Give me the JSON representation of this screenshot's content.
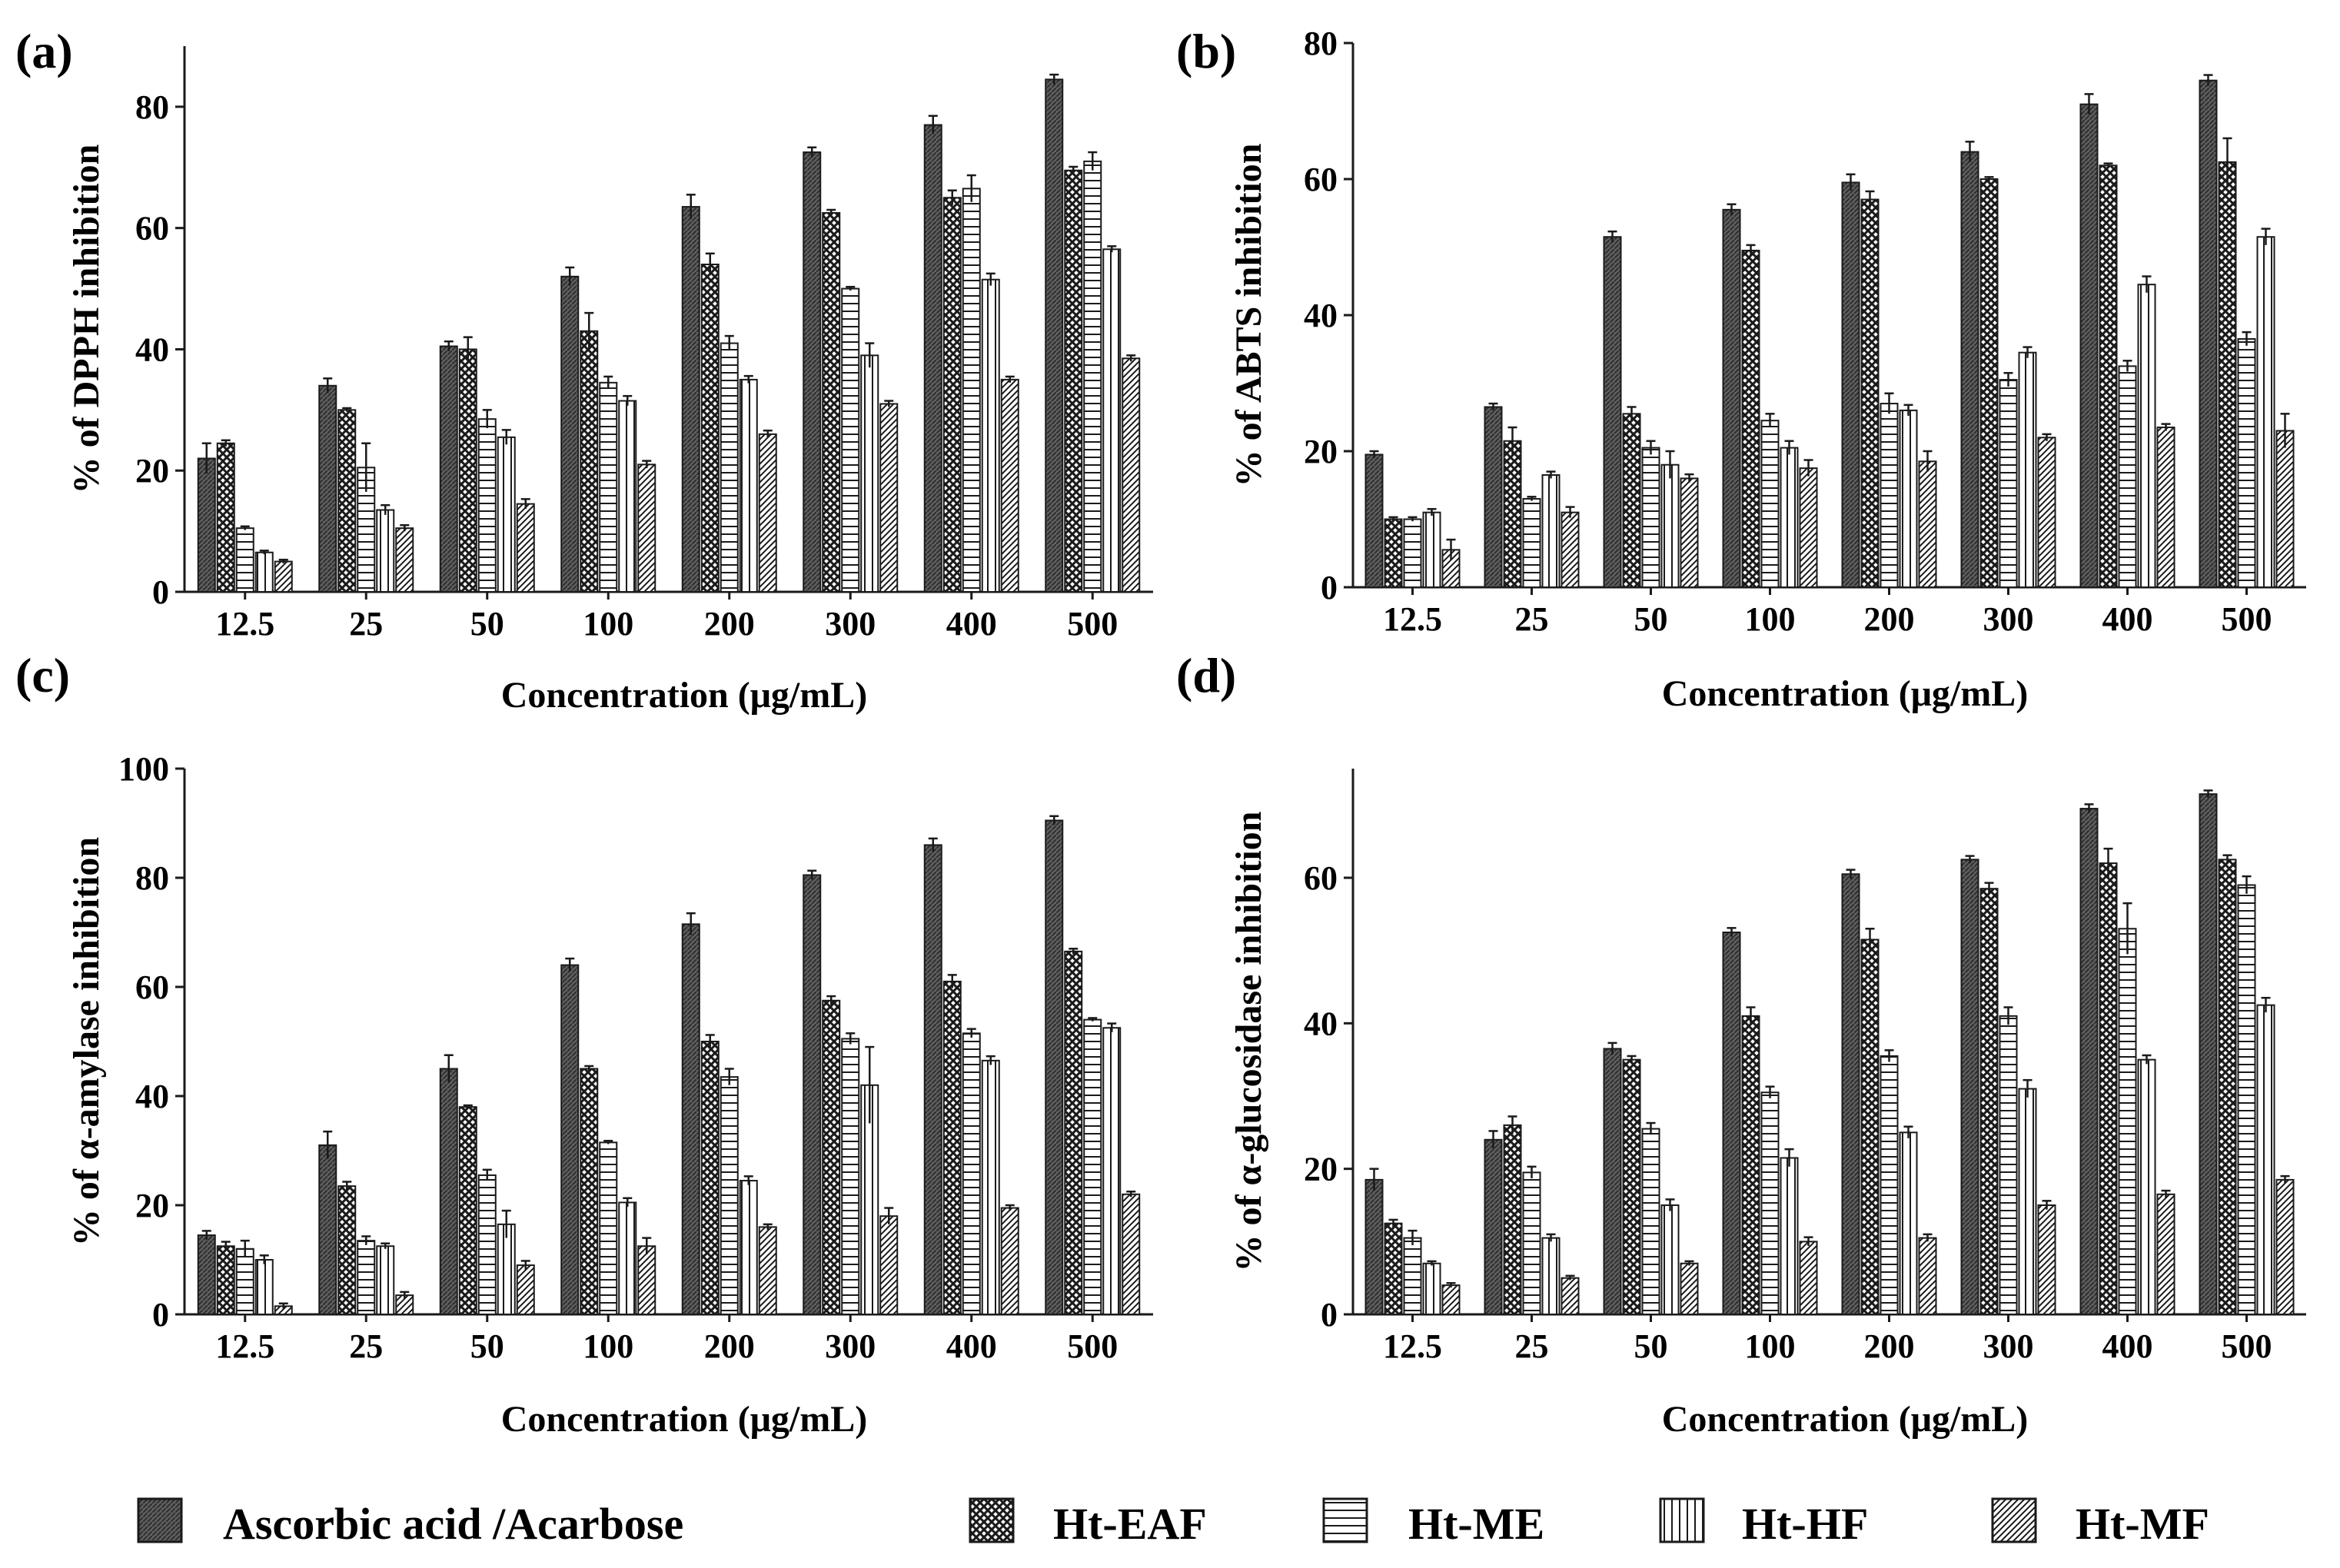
{
  "categories": [
    "12.5",
    "25",
    "50",
    "100",
    "200",
    "300",
    "400",
    "500"
  ],
  "series_names": [
    "Ascorbic acid /Acarbose",
    "Ht-EAF",
    "Ht-ME",
    "Ht-HF",
    "Ht-MF"
  ],
  "legend": {
    "items": [
      {
        "label": "Ascorbic acid /Acarbose",
        "pattern": "dense-dark"
      },
      {
        "label": "Ht-EAF",
        "pattern": "crosshatch"
      },
      {
        "label": "Ht-ME",
        "pattern": "horizontal-lines"
      },
      {
        "label": "Ht-HF",
        "pattern": "vertical-lines"
      },
      {
        "label": "Ht-MF",
        "pattern": "diagonal-lines"
      }
    ]
  },
  "colors": {
    "ink": "#1a1a1a",
    "dark_fill": "#666666",
    "background": "#ffffff"
  },
  "chart_data": [
    {
      "type": "bar",
      "panel": "(a)",
      "title": "",
      "xlabel": "Concentration  (μg/mL)",
      "ylabel": "% of DPPH inhibition",
      "ylim": [
        0,
        90
      ],
      "yticks": [
        0,
        20,
        40,
        60,
        80
      ],
      "categories": [
        "12.5",
        "25",
        "50",
        "100",
        "200",
        "300",
        "400",
        "500"
      ],
      "series": [
        {
          "name": "Ascorbic acid /Acarbose",
          "values": [
            22,
            34,
            40.5,
            52,
            63.5,
            72.5,
            77,
            84.5
          ],
          "errors": [
            2.5,
            1.2,
            0.8,
            1.5,
            2,
            0.8,
            1.5,
            0.8
          ]
        },
        {
          "name": "Ht-EAF",
          "values": [
            24.5,
            30,
            40,
            43,
            54,
            62.5,
            65,
            69.5
          ],
          "errors": [
            0.5,
            0.3,
            2,
            3,
            1.8,
            0.5,
            1.2,
            0.6
          ]
        },
        {
          "name": "Ht-ME",
          "values": [
            10.5,
            20.5,
            28.5,
            34.5,
            41,
            50,
            66.5,
            71
          ],
          "errors": [
            0.3,
            4,
            1.5,
            1,
            1.2,
            0.3,
            2.2,
            1.5
          ]
        },
        {
          "name": "Ht-HF",
          "values": [
            6.5,
            13.5,
            25.5,
            31.5,
            35,
            39,
            51.5,
            56.5
          ],
          "errors": [
            0.3,
            0.8,
            1.2,
            0.8,
            0.6,
            2,
            1,
            0.5
          ]
        },
        {
          "name": "Ht-MF",
          "values": [
            5,
            10.5,
            14.5,
            21,
            26,
            31,
            35,
            38.5
          ],
          "errors": [
            0.3,
            0.5,
            0.8,
            0.6,
            0.6,
            0.5,
            0.5,
            0.5
          ]
        }
      ]
    },
    {
      "type": "bar",
      "panel": "(b)",
      "title": "",
      "xlabel": "Concentration  (μg/mL)",
      "ylabel": "% of ABTS inhibition",
      "ylim": [
        0,
        80
      ],
      "yticks": [
        0,
        20,
        40,
        60,
        80
      ],
      "categories": [
        "12.5",
        "25",
        "50",
        "100",
        "200",
        "300",
        "400",
        "500"
      ],
      "series": [
        {
          "name": "Ascorbic acid /Acarbose",
          "values": [
            19.5,
            26.5,
            51.5,
            55.5,
            59.5,
            64,
            71,
            74.5
          ],
          "errors": [
            0.5,
            0.5,
            0.8,
            0.8,
            1.2,
            1.5,
            1.5,
            0.8
          ]
        },
        {
          "name": "Ht-EAF",
          "values": [
            10,
            21.5,
            25.5,
            49.5,
            57,
            60,
            62,
            62.5
          ],
          "errors": [
            0.3,
            2,
            1,
            0.8,
            1.2,
            0.3,
            0.3,
            3.5
          ]
        },
        {
          "name": "Ht-ME",
          "values": [
            10,
            13,
            20.5,
            24.5,
            27,
            30.5,
            32.5,
            36.5
          ],
          "errors": [
            0.3,
            0.3,
            1,
            1,
            1.5,
            1,
            0.8,
            1
          ]
        },
        {
          "name": "Ht-HF",
          "values": [
            11,
            16.5,
            18,
            20.5,
            26,
            34.5,
            44.5,
            51.5
          ],
          "errors": [
            0.5,
            0.5,
            2,
            1,
            0.8,
            0.8,
            1.2,
            1.2
          ]
        },
        {
          "name": "Ht-MF",
          "values": [
            5.5,
            11,
            16,
            17.5,
            18.5,
            22,
            23.5,
            23
          ],
          "errors": [
            1.5,
            0.8,
            0.6,
            1.2,
            1.5,
            0.5,
            0.5,
            2.5
          ]
        }
      ]
    },
    {
      "type": "bar",
      "panel": "(c)",
      "title": "",
      "xlabel": "Concentration  (μg/mL)",
      "ylabel": "% of α-amylase inhibition",
      "ylim": [
        0,
        100
      ],
      "yticks": [
        0,
        20,
        40,
        60,
        80,
        100
      ],
      "categories": [
        "12.5",
        "25",
        "50",
        "100",
        "200",
        "300",
        "400",
        "500"
      ],
      "series": [
        {
          "name": "Ascorbic acid /Acarbose",
          "values": [
            14.5,
            31,
            45,
            64,
            71.5,
            80.5,
            86,
            90.5
          ],
          "errors": [
            0.8,
            2.5,
            2.5,
            1.2,
            2,
            0.8,
            1.2,
            0.8
          ]
        },
        {
          "name": "Ht-EAF",
          "values": [
            12.5,
            23.5,
            38,
            45,
            50,
            57.5,
            61,
            66.5
          ],
          "errors": [
            0.8,
            0.8,
            0.3,
            0.5,
            1.2,
            0.8,
            1.2,
            0.5
          ]
        },
        {
          "name": "Ht-ME",
          "values": [
            12,
            13.5,
            25.5,
            31.5,
            43.5,
            50.5,
            51.5,
            54
          ],
          "errors": [
            1.5,
            0.8,
            1,
            0.3,
            1.5,
            1,
            0.8,
            0.3
          ]
        },
        {
          "name": "Ht-HF",
          "values": [
            10,
            12.5,
            16.5,
            20.5,
            24.5,
            42,
            46.5,
            52.5
          ],
          "errors": [
            0.8,
            0.5,
            2.5,
            0.8,
            0.8,
            7,
            0.8,
            0.8
          ]
        },
        {
          "name": "Ht-MF",
          "values": [
            1.5,
            3.5,
            9,
            12.5,
            16,
            18,
            19.5,
            22
          ],
          "errors": [
            0.5,
            0.6,
            0.8,
            1.5,
            0.5,
            1.5,
            0.5,
            0.5
          ]
        }
      ]
    },
    {
      "type": "bar",
      "panel": "(d)",
      "title": "",
      "xlabel": "Concentration  (μg/mL)",
      "ylabel": "% of α-glucosidase inhibition",
      "ylim": [
        0,
        75
      ],
      "yticks": [
        0,
        20,
        40,
        60
      ],
      "categories": [
        "12.5",
        "25",
        "50",
        "100",
        "200",
        "300",
        "400",
        "500"
      ],
      "series": [
        {
          "name": "Ascorbic acid /Acarbose",
          "values": [
            18.5,
            24,
            36.5,
            52.5,
            60.5,
            62.5,
            69.5,
            71.5
          ],
          "errors": [
            1.5,
            1.2,
            0.8,
            0.6,
            0.6,
            0.5,
            0.6,
            0.5
          ]
        },
        {
          "name": "Ht-EAF",
          "values": [
            12.5,
            26,
            35,
            41,
            51.5,
            58.5,
            62,
            62.5
          ],
          "errors": [
            0.5,
            1.2,
            0.5,
            1.2,
            1.5,
            0.8,
            2,
            0.6
          ]
        },
        {
          "name": "Ht-ME",
          "values": [
            10.5,
            19.5,
            25.5,
            30.5,
            35.5,
            41,
            53,
            59
          ],
          "errors": [
            1,
            0.8,
            0.8,
            0.8,
            0.8,
            1.2,
            3.5,
            1.2
          ]
        },
        {
          "name": "Ht-HF",
          "values": [
            7,
            10.5,
            15,
            21.5,
            25,
            31,
            35,
            42.5
          ],
          "errors": [
            0.3,
            0.5,
            0.8,
            1.2,
            0.8,
            1.2,
            0.6,
            1
          ]
        },
        {
          "name": "Ht-MF",
          "values": [
            4,
            5,
            7,
            10,
            10.5,
            15,
            16.5,
            18.5
          ],
          "errors": [
            0.3,
            0.3,
            0.3,
            0.6,
            0.5,
            0.6,
            0.5,
            0.5
          ]
        }
      ]
    }
  ]
}
